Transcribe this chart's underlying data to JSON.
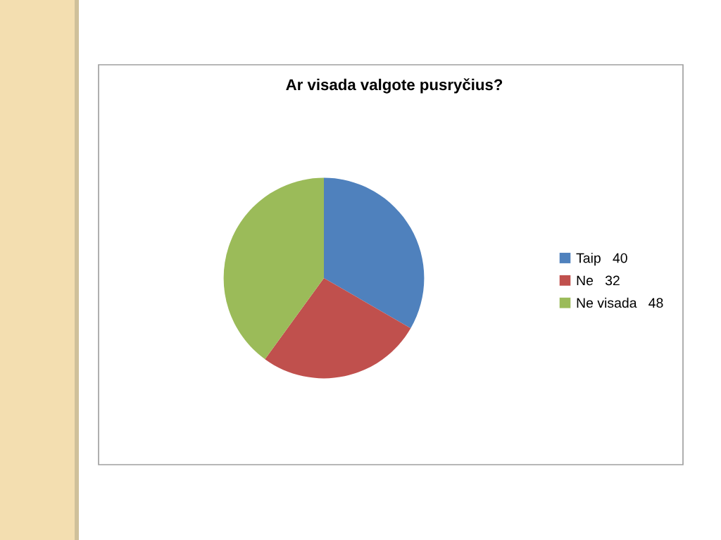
{
  "chart_data": {
    "type": "pie",
    "title": "Ar visada valgote pusryčius?",
    "categories": [
      "Taip",
      "Ne",
      "Ne visada"
    ],
    "values": [
      40,
      32,
      48
    ],
    "value_labels": [
      "40",
      "32",
      "48"
    ],
    "colors": [
      "#4f81bd",
      "#c0504d",
      "#9bbb59"
    ],
    "legend": "right"
  }
}
